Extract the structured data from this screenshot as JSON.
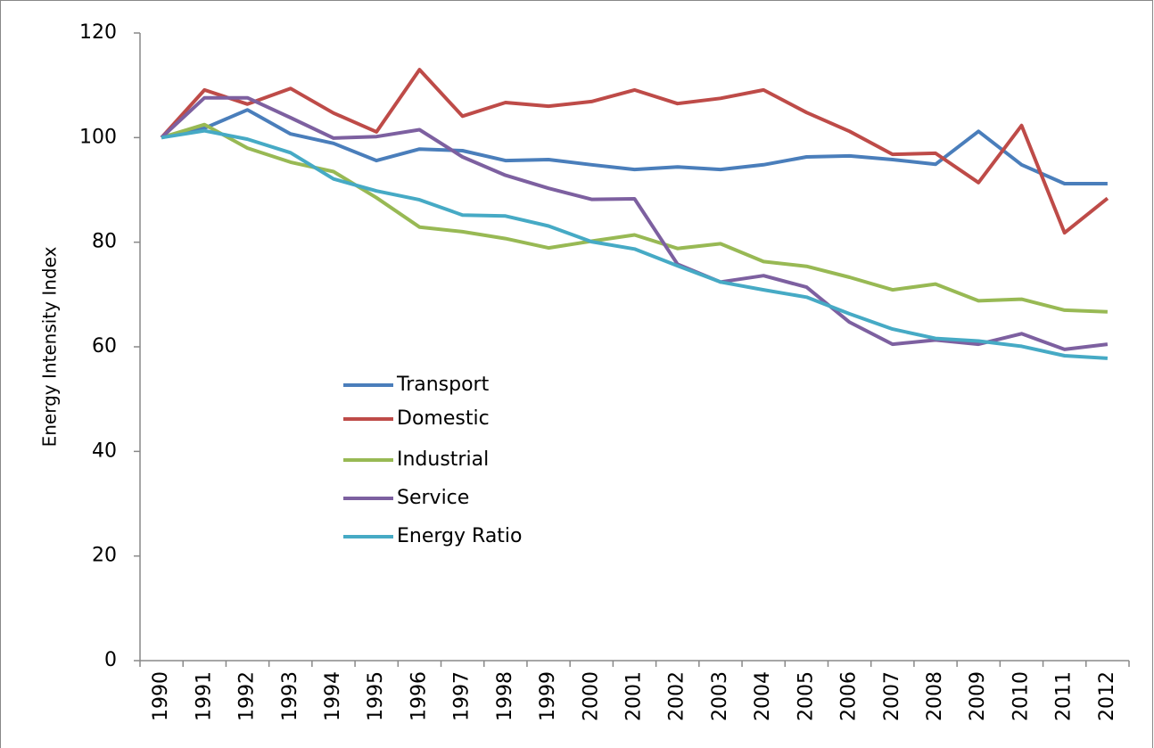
{
  "chart_data": {
    "type": "line",
    "y_label": "Energy Intensity Index",
    "categories": [
      "1990",
      "1991",
      "1992",
      "1993",
      "1994",
      "1995",
      "1996",
      "1997",
      "1998",
      "1999",
      "2000",
      "2001",
      "2002",
      "2003",
      "2004",
      "2005",
      "2006",
      "2007",
      "2008",
      "2009",
      "2010",
      "2011",
      "2012"
    ],
    "series": [
      {
        "name": "Transport",
        "color": "#4a7ebb",
        "values": [
          100,
          101.8,
          105.3,
          100.7,
          98.9,
          95.6,
          97.8,
          97.5,
          95.6,
          95.8,
          94.8,
          93.9,
          94.4,
          93.9,
          94.8,
          96.3,
          96.5,
          95.8,
          94.9,
          101.2,
          94.8,
          91.2,
          91.2
        ]
      },
      {
        "name": "Domestic",
        "color": "#be4b48",
        "values": [
          100,
          109.1,
          106.4,
          109.4,
          104.7,
          101.1,
          113,
          104.1,
          106.7,
          106,
          106.9,
          109.1,
          106.5,
          107.5,
          109.1,
          104.8,
          101.2,
          96.8,
          97,
          91.4,
          102.3,
          81.8,
          88.4
        ]
      },
      {
        "name": "Industrial",
        "color": "#98b954",
        "values": [
          100,
          102.5,
          98,
          95.3,
          93.5,
          88.5,
          82.9,
          82,
          80.7,
          78.9,
          80.2,
          81.4,
          78.8,
          79.7,
          76.3,
          75.4,
          73.3,
          70.9,
          72,
          68.8,
          69.1,
          67,
          66.7
        ]
      },
      {
        "name": "Service",
        "color": "#7d60a0",
        "values": [
          100,
          107.6,
          107.6,
          103.8,
          99.9,
          100.2,
          101.5,
          96.3,
          92.8,
          90.3,
          88.2,
          88.3,
          75.8,
          72.4,
          73.6,
          71.4,
          64.7,
          60.5,
          61.3,
          60.5,
          62.5,
          59.5,
          60.5
        ]
      },
      {
        "name": "Energy Ratio",
        "color": "#46aac5",
        "values": [
          100,
          101.3,
          99.7,
          97.1,
          92.1,
          89.8,
          88.1,
          85.2,
          85,
          83.1,
          80.1,
          78.7,
          75.5,
          72.4,
          70.9,
          69.5,
          66.3,
          63.4,
          61.6,
          61.1,
          60.1,
          58.3,
          57.8
        ]
      }
    ],
    "ylim": [
      0,
      120
    ],
    "yticks": [
      0,
      20,
      40,
      60,
      80,
      100,
      120
    ],
    "grid": false,
    "legend_position": "left"
  }
}
